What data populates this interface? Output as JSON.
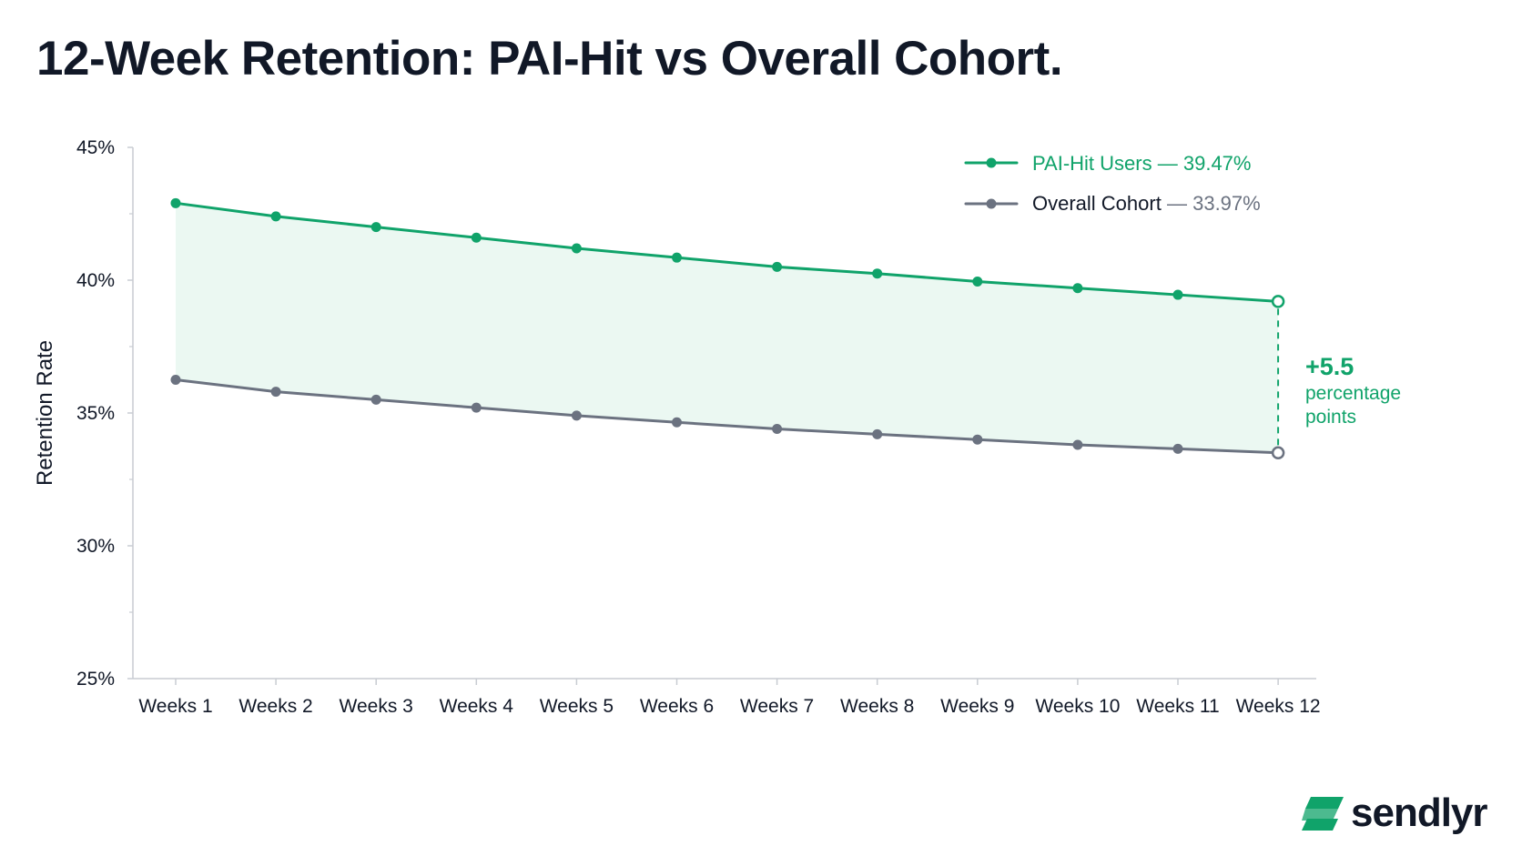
{
  "colors": {
    "pai": "#10a36a",
    "overall": "#6b7280",
    "band": "#ebf8f2",
    "axis": "#c8ccd2",
    "text": "#111827"
  },
  "chart_data": {
    "type": "line",
    "title": "12-Week Retention: PAI-Hit vs Overall Cohort.",
    "xlabel": "",
    "ylabel": "Retention Rate",
    "ylim": [
      25,
      45
    ],
    "y_ticks": [
      "45%",
      "40%",
      "35%",
      "30%",
      "25%"
    ],
    "categories": [
      "Weeks 1",
      "Weeks 2",
      "Weeks 3",
      "Weeks 4",
      "Weeks 5",
      "Weeks 6",
      "Weeks 7",
      "Weeks 8",
      "Weeks 9",
      "Weeks 10",
      "Weeks 11",
      "Weeks 12"
    ],
    "series": [
      {
        "name": "PAI-Hit Users — 39.47%",
        "color": "#10a36a",
        "values": [
          42.9,
          42.4,
          42.0,
          41.6,
          41.2,
          40.85,
          40.5,
          40.25,
          39.95,
          39.7,
          39.45,
          39.2
        ]
      },
      {
        "name": "Overall Cohort — 33.97%",
        "color": "#6b7280",
        "values": [
          36.25,
          35.8,
          35.5,
          35.2,
          34.9,
          34.65,
          34.4,
          34.2,
          34.0,
          33.8,
          33.65,
          33.5
        ]
      }
    ],
    "legend": {
      "placement": "top-right",
      "pai_name": "PAI-Hit Users",
      "pai_value": "39.47%",
      "overall_name": "Overall Cohort",
      "overall_value": "33.97%",
      "separator": "—"
    },
    "annotation": {
      "value": "+5.5",
      "line1": "percentage",
      "line2": "points"
    },
    "grid": false
  },
  "brand": {
    "name": "sendlyr",
    "logo_icon": "sendlyr-logo-icon"
  }
}
